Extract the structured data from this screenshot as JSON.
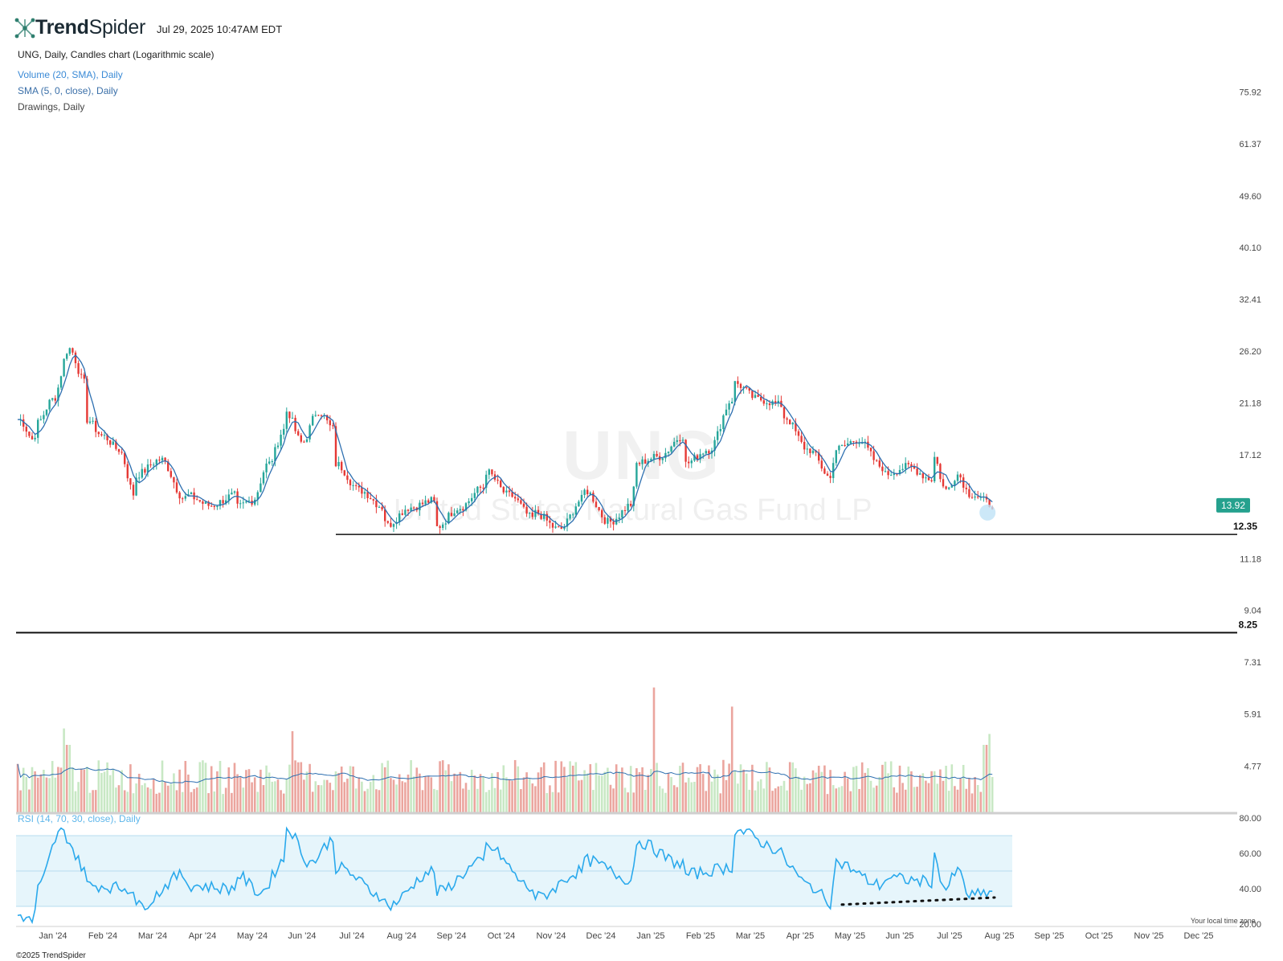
{
  "header": {
    "brand": "TrendSpider",
    "brand_bold": "Trend",
    "brand_light": "Spider",
    "timestamp": "Jul 29, 2025 10:47AM EDT",
    "chart_title": "UNG, Daily, Candles chart (Logarithmic scale)",
    "indicators": [
      "Volume (20, SMA), Daily",
      "SMA (5, 0, close), Daily",
      "Drawings, Daily"
    ],
    "rsi_label": "RSI (14, 70, 30, close), Daily"
  },
  "watermark": {
    "ticker": "UNG",
    "name": "United States Natural Gas Fund LP"
  },
  "footer": {
    "copyright": "©2025 TrendSpider",
    "timezone_note": "Your local time zone"
  },
  "colors": {
    "up": "#26a69a",
    "down": "#e53935",
    "sma": "#2d6fb0",
    "vol_up": "#c8e8c4",
    "vol_down": "#eba59e",
    "rsi_line": "#2aa9ec",
    "rsi_band": "#e6f5fb",
    "price_badge": "#25a18e"
  },
  "chart_data": [
    {
      "type": "candlestick",
      "scale": "log",
      "ylim": [
        6.6,
        88
      ],
      "price_ticks": [
        "75.92",
        "61.37",
        "49.60",
        "40.10",
        "32.41",
        "26.20",
        "21.18",
        "17.12",
        "11.18",
        "9.04",
        "7.31",
        "5.91",
        "4.77"
      ],
      "x_ticks": [
        "Jan '24",
        "Feb '24",
        "Mar '24",
        "Apr '24",
        "May '24",
        "Jun '24",
        "Jul '24",
        "Aug '24",
        "Sep '24",
        "Oct '24",
        "Nov '24",
        "Dec '24",
        "Jan '25",
        "Feb '25",
        "Mar '25",
        "Apr '25",
        "May '25",
        "Jun '25",
        "Jul '25",
        "Aug '25",
        "Sep '25",
        "Oct '25",
        "Nov '25",
        "Dec '25"
      ],
      "x_range": [
        "Dec '23",
        "Dec '25"
      ],
      "last_price": "13.92",
      "support_levels": [
        {
          "label": "12.35",
          "value": 12.35,
          "from": "Jul '24"
        },
        {
          "label": "8.25",
          "value": 8.25,
          "from": "Dec '23"
        }
      ],
      "close_keypoints": [
        [
          "Dec '23",
          19.8
        ],
        [
          "Dec '23",
          18.2
        ],
        [
          "Jan '24",
          19.5
        ],
        [
          "Jan '24",
          21.5
        ],
        [
          "Jan '24",
          26.5
        ],
        [
          "Jan '24",
          23.0
        ],
        [
          "Feb '24",
          19.8
        ],
        [
          "Feb '24",
          18.5
        ],
        [
          "Feb '24",
          17.5
        ],
        [
          "Feb '24",
          14.5
        ],
        [
          "Mar '24",
          15.8
        ],
        [
          "Mar '24",
          16.8
        ],
        [
          "Mar '24",
          14.3
        ],
        [
          "Apr '24",
          14.5
        ],
        [
          "Apr '24",
          13.9
        ],
        [
          "Apr '24",
          14.5
        ],
        [
          "May '24",
          13.8
        ],
        [
          "May '24",
          14.2
        ],
        [
          "May '24",
          16.5
        ],
        [
          "May '24",
          19.0
        ],
        [
          "Jun '24",
          20.5
        ],
        [
          "Jun '24",
          18.0
        ],
        [
          "Jun '24",
          20.5
        ],
        [
          "Jun '24",
          19.0
        ],
        [
          "Jul '24",
          16.5
        ],
        [
          "Jul '24",
          14.8
        ],
        [
          "Jul '24",
          13.8
        ],
        [
          "Aug '24",
          12.8
        ],
        [
          "Aug '24",
          13.8
        ],
        [
          "Aug '24",
          14.2
        ],
        [
          "Sep '24",
          12.7
        ],
        [
          "Sep '24",
          13.8
        ],
        [
          "Sep '24",
          15.0
        ],
        [
          "Oct '24",
          16.0
        ],
        [
          "Oct '24",
          14.5
        ],
        [
          "Oct '24",
          13.2
        ],
        [
          "Nov '24",
          13.5
        ],
        [
          "Nov '24",
          12.6
        ],
        [
          "Nov '24",
          14.3
        ],
        [
          "Dec '24",
          14.8
        ],
        [
          "Dec '24",
          13.0
        ],
        [
          "Dec '24",
          14.0
        ],
        [
          "Jan '25",
          16.5
        ],
        [
          "Jan '25",
          17.0
        ],
        [
          "Jan '25",
          18.5
        ],
        [
          "Feb '25",
          16.5
        ],
        [
          "Feb '25",
          17.5
        ],
        [
          "Feb '25",
          21.5
        ],
        [
          "Mar '25",
          23.0
        ],
        [
          "Mar '25",
          21.5
        ],
        [
          "Mar '25",
          21.0
        ],
        [
          "Apr '25",
          20.0
        ],
        [
          "Apr '25",
          17.5
        ],
        [
          "Apr '25",
          15.5
        ],
        [
          "May '25",
          17.5
        ],
        [
          "May '25",
          18.2
        ],
        [
          "May '25",
          16.3
        ],
        [
          "Jun '25",
          15.8
        ],
        [
          "Jun '25",
          16.3
        ],
        [
          "Jun '25",
          15.5
        ],
        [
          "Jul '25",
          17.0
        ],
        [
          "Jul '25",
          14.8
        ],
        [
          "Jul '25",
          15.8
        ],
        [
          "Jul '25",
          14.6
        ],
        [
          "Jul '25",
          13.92
        ]
      ]
    },
    {
      "type": "bar",
      "name": "Volume",
      "overlay": "Volume (20, SMA)",
      "notes": "Spikes in mid Jan '24, late May '24, late Dec '24, late Feb '25 and late Jul '25"
    },
    {
      "type": "line",
      "name": "RSI",
      "ylim": [
        20,
        80
      ],
      "y_ticks": [
        "80.00",
        "60.00",
        "40.00",
        "20.00"
      ],
      "bands": [
        30,
        50,
        70
      ],
      "keypoints": [
        [
          "Dec '23",
          25
        ],
        [
          "Dec '23",
          21
        ],
        [
          "Jan '24",
          40
        ],
        [
          "Jan '24",
          72
        ],
        [
          "Jan '24",
          52
        ],
        [
          "Feb '24",
          42
        ],
        [
          "Feb '24",
          40
        ],
        [
          "Mar '24",
          30
        ],
        [
          "Mar '24",
          48
        ],
        [
          "Apr '24",
          42
        ],
        [
          "Apr '24",
          40
        ],
        [
          "May '24",
          48
        ],
        [
          "May '24",
          38
        ],
        [
          "May '24",
          56
        ],
        [
          "Jun '24",
          75
        ],
        [
          "Jun '24",
          55
        ],
        [
          "Jun '24",
          68
        ],
        [
          "Jul '24",
          52
        ],
        [
          "Jul '24",
          36
        ],
        [
          "Aug '24",
          30
        ],
        [
          "Aug '24",
          50
        ],
        [
          "Sep '24",
          38
        ],
        [
          "Sep '24",
          55
        ],
        [
          "Oct '24",
          64
        ],
        [
          "Oct '24",
          40
        ],
        [
          "Nov '24",
          35
        ],
        [
          "Nov '24",
          50
        ],
        [
          "Dec '24",
          56
        ],
        [
          "Dec '24",
          45
        ],
        [
          "Jan '25",
          67
        ],
        [
          "Jan '25",
          54
        ],
        [
          "Feb '25",
          48
        ],
        [
          "Feb '25",
          52
        ],
        [
          "Mar '25",
          73
        ],
        [
          "Mar '25",
          62
        ],
        [
          "Apr '25",
          55
        ],
        [
          "Apr '25",
          42
        ],
        [
          "Apr '25",
          32
        ],
        [
          "May '25",
          55
        ],
        [
          "May '25",
          42
        ],
        [
          "Jun '25",
          46
        ],
        [
          "Jun '25",
          44
        ],
        [
          "Jul '25",
          58
        ],
        [
          "Jul '25",
          40
        ],
        [
          "Jul '25",
          50
        ],
        [
          "Jul '25",
          36
        ],
        [
          "Jul '25",
          38
        ]
      ],
      "divergence_line": {
        "from": [
          "May '25",
          31
        ],
        "to": [
          "Jul '25",
          35
        ],
        "style": "dotted"
      }
    }
  ]
}
